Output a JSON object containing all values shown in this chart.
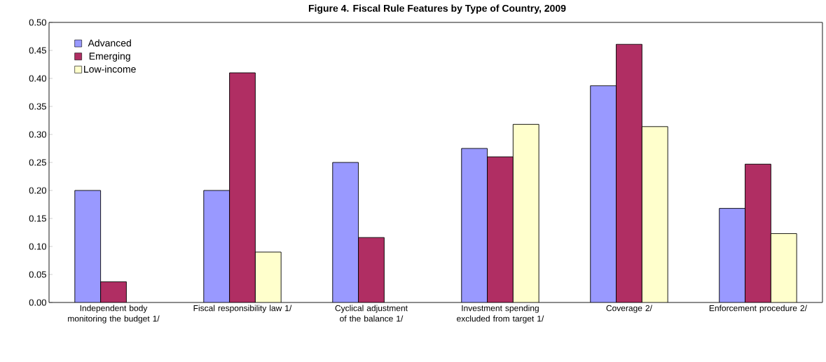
{
  "chart_data": {
    "type": "bar",
    "title": "Figure 4. Fiscal Rule Features by Type of Country, 2009",
    "categories": [
      "Independent body monitoring the budget 1/",
      "Fiscal responsibility law  1/",
      "Cyclical adjustment of the balance 1/",
      "Investment spending excluded from target 1/",
      "Coverage 2/",
      "Enforcement procedure 2/"
    ],
    "series": [
      {
        "name": "Advanced",
        "color": "#9999ff",
        "values": [
          0.2,
          0.2,
          0.25,
          0.275,
          0.387,
          0.168
        ]
      },
      {
        "name": "Emerging",
        "color": "#b02e63",
        "values": [
          0.037,
          0.41,
          0.116,
          0.26,
          0.461,
          0.247
        ]
      },
      {
        "name": "Low-income",
        "color": "#ffffcc",
        "values": [
          null,
          0.09,
          null,
          0.318,
          0.314,
          0.123
        ]
      }
    ],
    "ylim": [
      0,
      0.5
    ],
    "yticks": [
      {
        "value": 0,
        "label": "0.00"
      },
      {
        "value": 0.05,
        "label": "0.05"
      },
      {
        "value": 0.1,
        "label": "0.10"
      },
      {
        "value": 0.15,
        "label": "0.15"
      },
      {
        "value": 0.2,
        "label": "0.20"
      },
      {
        "value": 0.25,
        "label": "0.25"
      },
      {
        "value": 0.3,
        "label": "0.30"
      },
      {
        "value": 0.35,
        "label": "0.35"
      },
      {
        "value": 0.4,
        "label": "0.40"
      },
      {
        "value": 0.45,
        "label": "0.45"
      },
      {
        "value": 0.5,
        "label": "0.50"
      }
    ],
    "legend": "top left",
    "grid": false
  }
}
